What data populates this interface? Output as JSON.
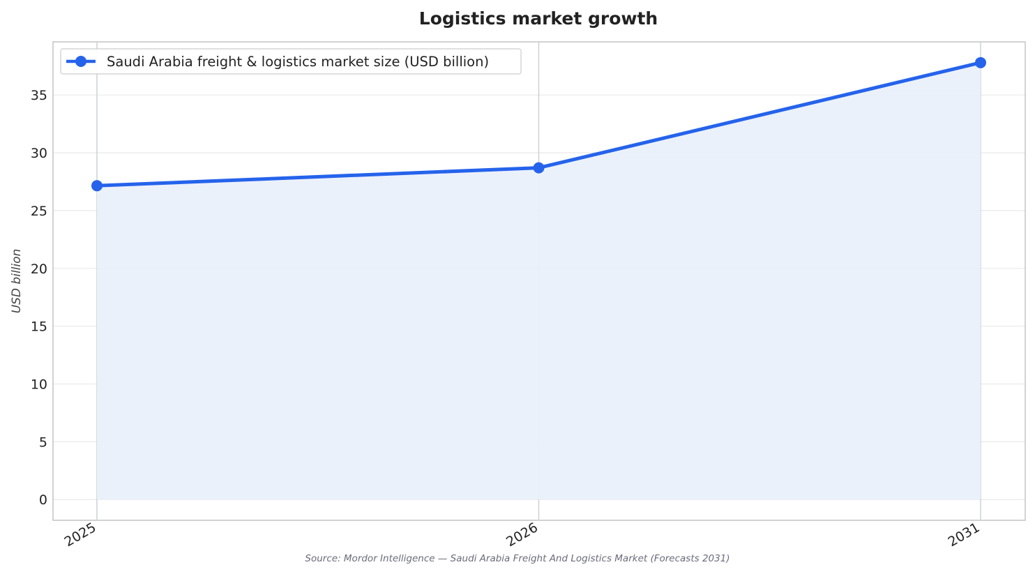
{
  "chart_data": {
    "type": "area",
    "title": "Logistics market growth",
    "xlabel": "",
    "ylabel": "USD billion",
    "categories": [
      "2025",
      "2026",
      "2031"
    ],
    "series": [
      {
        "name": "Saudi Arabia freight & logistics market size (USD billion)",
        "values": [
          27.15,
          28.7,
          37.8
        ],
        "color": "#2563eb",
        "fill": "#eaf0fb"
      }
    ],
    "ylim": [
      -1.8,
      39.6
    ],
    "yticks": [
      0,
      5,
      10,
      15,
      20,
      25,
      30,
      35
    ],
    "grid": true,
    "legend": "top-left",
    "source": "Source: Mordor Intelligence — Saudi Arabia Freight And Logistics Market (Forecasts 2031)"
  }
}
